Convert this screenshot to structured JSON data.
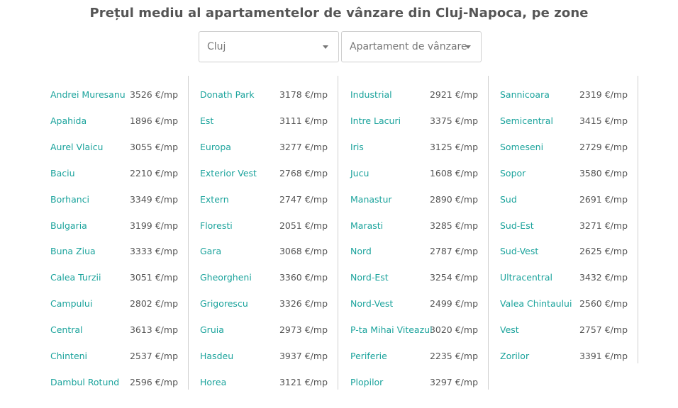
{
  "title": "Prețul mediu al apartamentelor de vânzare din Cluj-Napoca, pe zone",
  "filters": {
    "city": "Cluj",
    "property_type": "Apartament de vânzare"
  },
  "columns": [
    [
      {
        "zone": "Andrei Muresanu",
        "price": "3526 €/mp"
      },
      {
        "zone": "Apahida",
        "price": "1896 €/mp"
      },
      {
        "zone": "Aurel Vlaicu",
        "price": "3055 €/mp"
      },
      {
        "zone": "Baciu",
        "price": "2210 €/mp"
      },
      {
        "zone": "Borhanci",
        "price": "3349 €/mp"
      },
      {
        "zone": "Bulgaria",
        "price": "3199 €/mp"
      },
      {
        "zone": "Buna Ziua",
        "price": "3333 €/mp"
      },
      {
        "zone": "Calea Turzii",
        "price": "3051 €/mp"
      },
      {
        "zone": "Campului",
        "price": "2802 €/mp"
      },
      {
        "zone": "Central",
        "price": "3613 €/mp"
      },
      {
        "zone": "Chinteni",
        "price": "2537 €/mp"
      },
      {
        "zone": "Dambul Rotund",
        "price": "2596 €/mp"
      }
    ],
    [
      {
        "zone": "Donath Park",
        "price": "3178 €/mp"
      },
      {
        "zone": "Est",
        "price": "3111 €/mp"
      },
      {
        "zone": "Europa",
        "price": "3277 €/mp"
      },
      {
        "zone": "Exterior Vest",
        "price": "2768 €/mp"
      },
      {
        "zone": "Extern",
        "price": "2747 €/mp"
      },
      {
        "zone": "Floresti",
        "price": "2051 €/mp"
      },
      {
        "zone": "Gara",
        "price": "3068 €/mp"
      },
      {
        "zone": "Gheorgheni",
        "price": "3360 €/mp"
      },
      {
        "zone": "Grigorescu",
        "price": "3326 €/mp"
      },
      {
        "zone": "Gruia",
        "price": "2973 €/mp"
      },
      {
        "zone": "Hasdeu",
        "price": "3937 €/mp"
      },
      {
        "zone": "Horea",
        "price": "3121 €/mp"
      }
    ],
    [
      {
        "zone": "Industrial",
        "price": "2921 €/mp"
      },
      {
        "zone": "Intre Lacuri",
        "price": "3375 €/mp"
      },
      {
        "zone": "Iris",
        "price": "3125 €/mp"
      },
      {
        "zone": "Jucu",
        "price": "1608 €/mp"
      },
      {
        "zone": "Manastur",
        "price": "2890 €/mp"
      },
      {
        "zone": "Marasti",
        "price": "3285 €/mp"
      },
      {
        "zone": "Nord",
        "price": "2787 €/mp"
      },
      {
        "zone": "Nord-Est",
        "price": "3254 €/mp"
      },
      {
        "zone": "Nord-Vest",
        "price": "2499 €/mp"
      },
      {
        "zone": "P-ta Mihai Viteazul",
        "price": "3020 €/mp"
      },
      {
        "zone": "Periferie",
        "price": "2235 €/mp"
      },
      {
        "zone": "Plopilor",
        "price": "3297 €/mp"
      }
    ],
    [
      {
        "zone": "Sannicoara",
        "price": "2319 €/mp"
      },
      {
        "zone": "Semicentral",
        "price": "3415 €/mp"
      },
      {
        "zone": "Someseni",
        "price": "2729 €/mp"
      },
      {
        "zone": "Sopor",
        "price": "3580 €/mp"
      },
      {
        "zone": "Sud",
        "price": "2691 €/mp"
      },
      {
        "zone": "Sud-Est",
        "price": "3271 €/mp"
      },
      {
        "zone": "Sud-Vest",
        "price": "2625 €/mp"
      },
      {
        "zone": "Ultracentral",
        "price": "3432 €/mp"
      },
      {
        "zone": "Valea Chintaului",
        "price": "2560 €/mp"
      },
      {
        "zone": "Vest",
        "price": "2757 €/mp"
      },
      {
        "zone": "Zorilor",
        "price": "3391 €/mp"
      }
    ]
  ]
}
